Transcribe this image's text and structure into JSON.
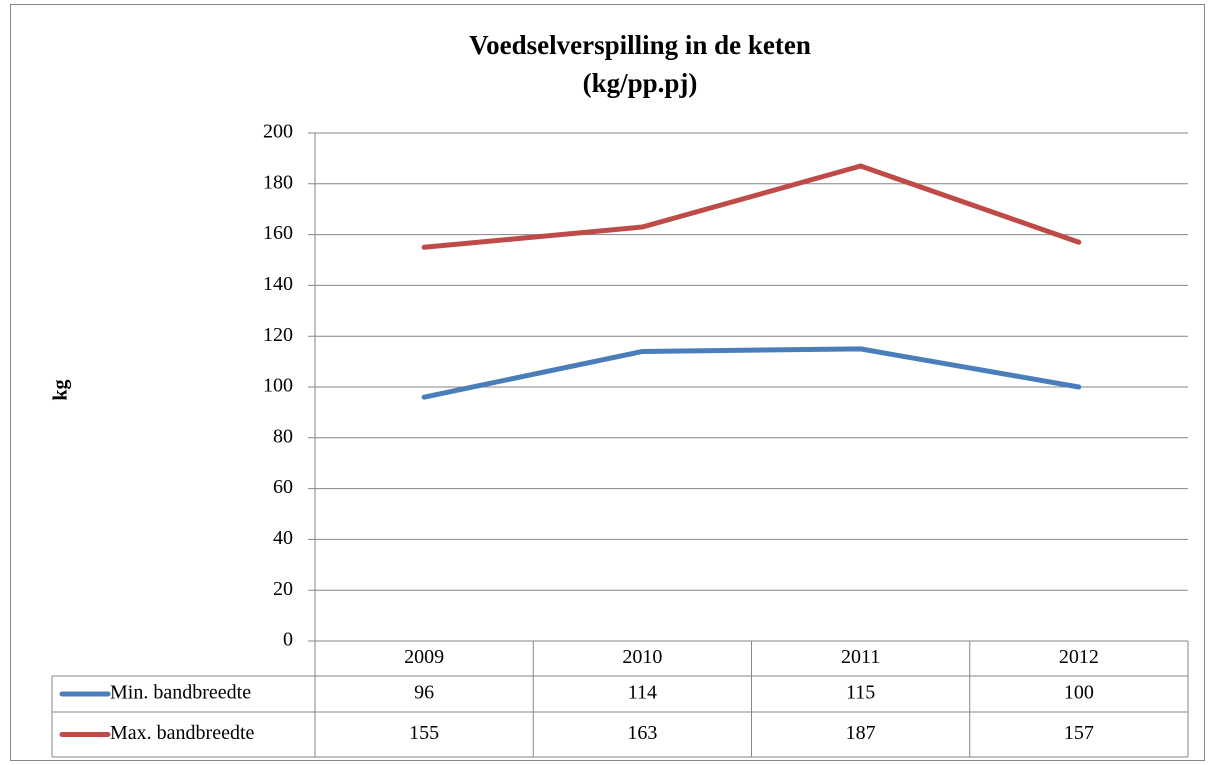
{
  "chart_data": {
    "type": "line",
    "title": [
      "Voedselverspilling in de keten",
      "(kg/pp.pj)"
    ],
    "y_label": "kg",
    "categories": [
      "2009",
      "2010",
      "2011",
      "2012"
    ],
    "series": [
      {
        "name": "Min. bandbreedte",
        "color": "#4a7ebb",
        "values": [
          96,
          114,
          115,
          100
        ]
      },
      {
        "name": "Max. bandbreedte",
        "color": "#be4b48",
        "values": [
          155,
          163,
          187,
          157
        ]
      }
    ],
    "ylim": [
      0,
      200
    ],
    "yticks": [
      0,
      20,
      40,
      60,
      80,
      100,
      120,
      140,
      160,
      180,
      200
    ],
    "grid": true,
    "data_table": true
  }
}
